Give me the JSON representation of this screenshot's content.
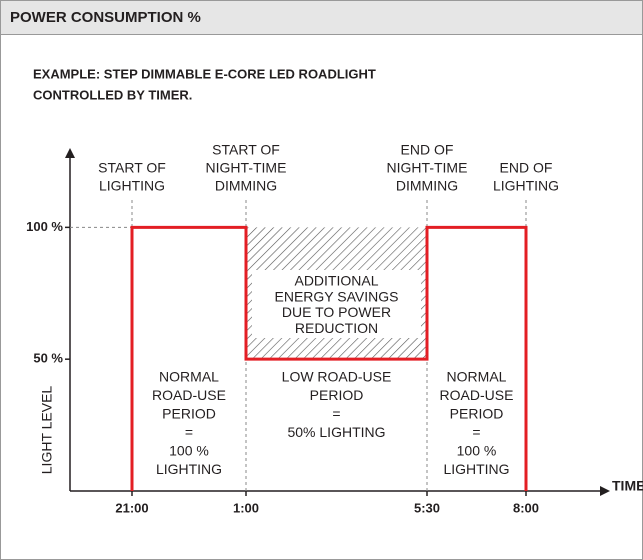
{
  "chart_data": {
    "type": "step",
    "header": "POWER CONSUMPTION %",
    "subtitle": [
      "EXAMPLE: STEP DIMMABLE E-CORE LED ROADLIGHT",
      "CONTROLLED BY TIMER."
    ],
    "categories": [
      "21:00",
      "1:00",
      "5:30",
      "8:00"
    ],
    "values": [
      100,
      50,
      100,
      0
    ],
    "color": "#e31e24",
    "event_labels": [
      [
        "START OF",
        "LIGHTING"
      ],
      [
        "START OF",
        "NIGHT-TIME",
        "DIMMING"
      ],
      [
        "END OF",
        "NIGHT-TIME",
        "DIMMING"
      ],
      [
        "END OF",
        "LIGHTING"
      ]
    ],
    "period_labels": [
      [
        "NORMAL",
        "ROAD-USE",
        "PERIOD",
        "=",
        "100 %",
        "LIGHTING"
      ],
      [
        "LOW ROAD-USE",
        "PERIOD",
        "=",
        "50% LIGHTING"
      ],
      [
        "NORMAL",
        "ROAD-USE",
        "PERIOD",
        "=",
        "100 %",
        "LIGHTING"
      ]
    ],
    "savings_label": [
      "ADDITIONAL",
      "ENERGY SAVINGS",
      "DUE TO POWER",
      "REDUCTION"
    ],
    "ylabel": "LIGHT LEVEL",
    "xlabel": "TIME",
    "ylim": [
      0,
      110
    ],
    "yticks": [
      {
        "value": 50,
        "label": "50 %"
      },
      {
        "value": 100,
        "label": "100 %"
      }
    ]
  }
}
